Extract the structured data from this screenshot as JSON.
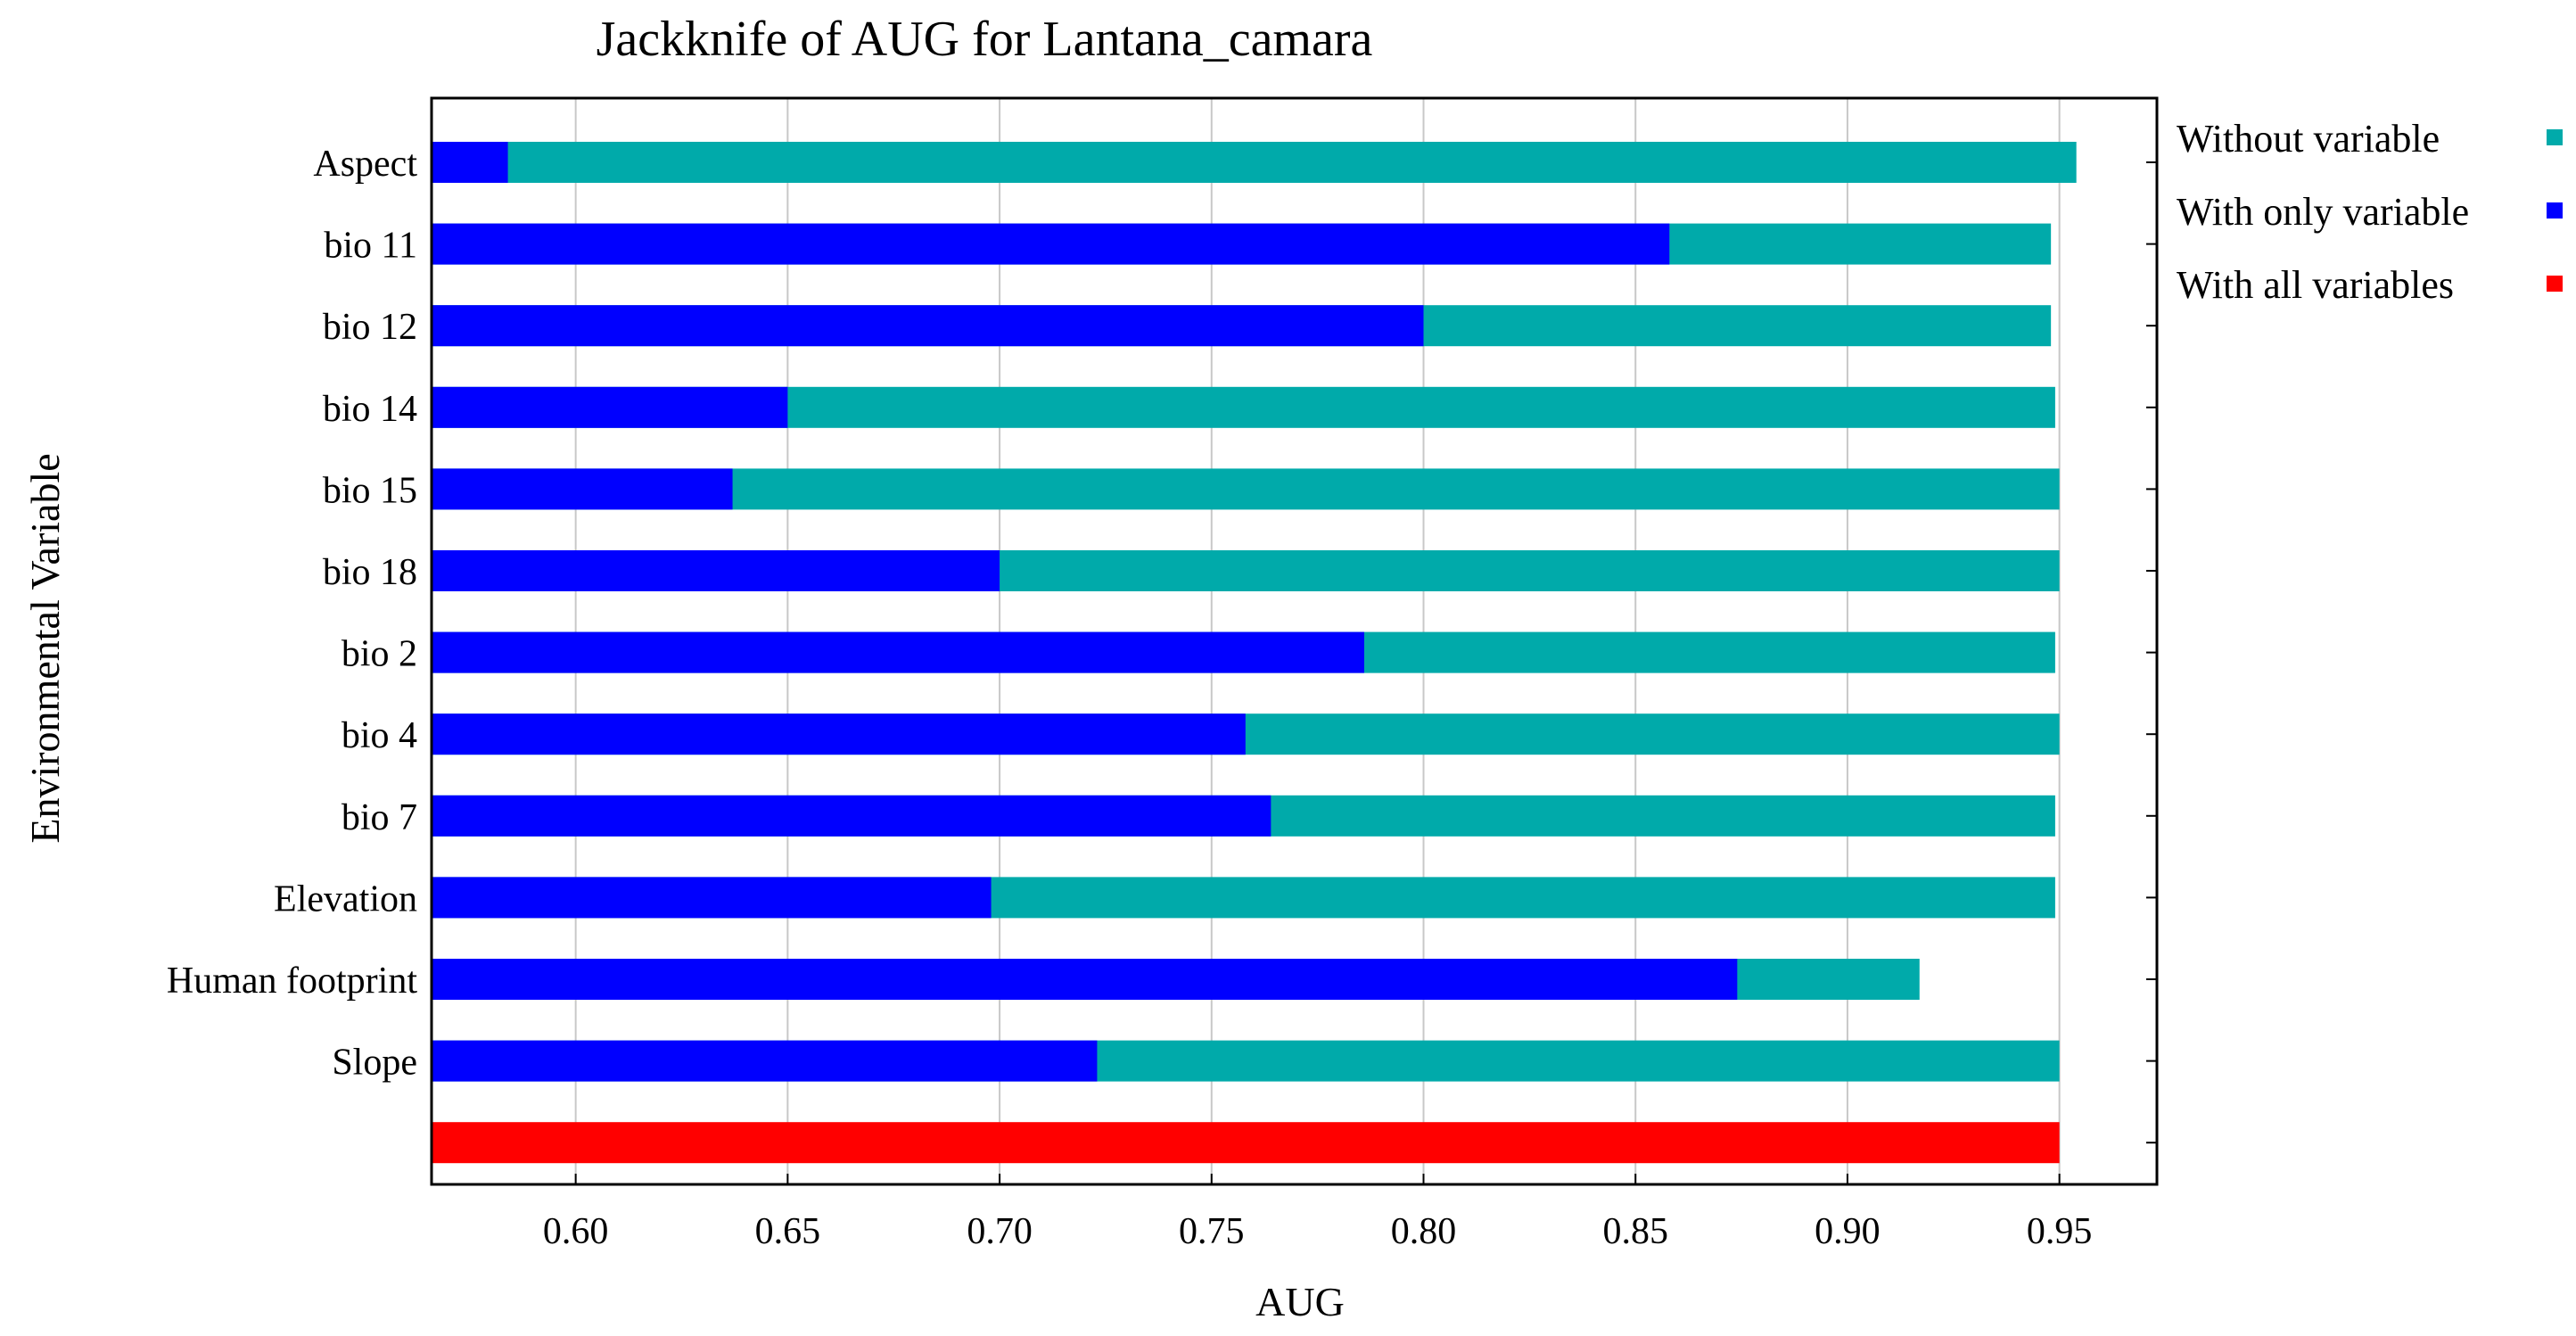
{
  "chart_data": {
    "type": "bar",
    "orientation": "horizontal",
    "title": "Jackknife of AUG for Lantana_camara",
    "xlabel": "AUG",
    "ylabel": "Environmental Variable",
    "xlim": [
      0.566,
      0.973
    ],
    "xticks": [
      0.6,
      0.65,
      0.7,
      0.75,
      0.8,
      0.85,
      0.9,
      0.95
    ],
    "xtick_labels": [
      "0.60",
      "0.65",
      "0.70",
      "0.75",
      "0.80",
      "0.85",
      "0.90",
      "0.95"
    ],
    "grid": true,
    "legend_position": "right",
    "categories": [
      "Aspect",
      "bio 11",
      "bio 12",
      "bio 14",
      "bio 15",
      "bio 18",
      "bio 2",
      "bio 4",
      "bio 7",
      "Elevation",
      "Human footprint",
      "Slope",
      ""
    ],
    "series": [
      {
        "name": "Without variable",
        "color": "#00AAAA",
        "values": [
          0.954,
          0.948,
          0.948,
          0.949,
          0.95,
          0.95,
          0.949,
          0.95,
          0.949,
          0.949,
          0.917,
          0.95,
          null
        ]
      },
      {
        "name": "With only variable",
        "color": "#0000FF",
        "values": [
          0.584,
          0.858,
          0.8,
          0.65,
          0.637,
          0.7,
          0.786,
          0.758,
          0.764,
          0.698,
          0.874,
          0.723,
          null
        ]
      },
      {
        "name": "With all variables",
        "color": "#FF0000",
        "values": [
          null,
          null,
          null,
          null,
          null,
          null,
          null,
          null,
          null,
          null,
          null,
          null,
          0.95
        ]
      }
    ]
  }
}
